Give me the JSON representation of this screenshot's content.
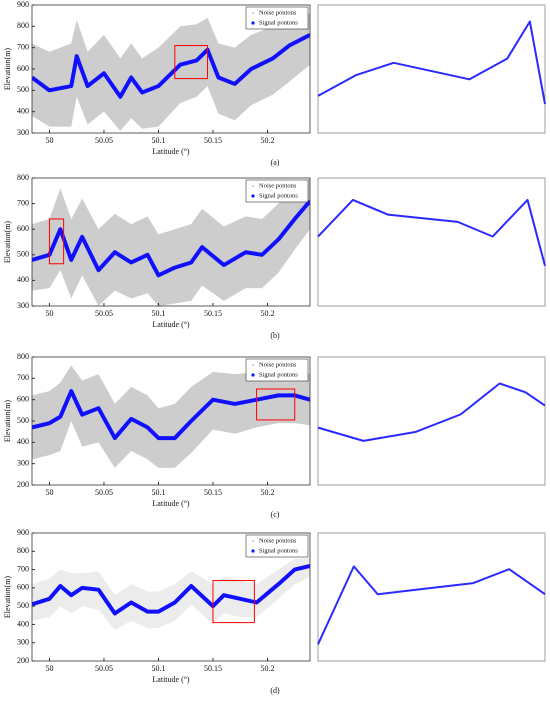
{
  "chart_data": [
    {
      "type": "line",
      "caption": "(a)",
      "xlabel": "Latitude (°)",
      "ylabel": "Elevation(m)",
      "legend": "upper right",
      "xlim": [
        49.984,
        50.239
      ],
      "ylim": [
        300,
        900
      ],
      "xticks": [
        50,
        50.05,
        50.1,
        50.15,
        50.2
      ],
      "yticks": [
        300,
        400,
        500,
        600,
        700,
        800,
        900
      ],
      "x": [
        49.984,
        50,
        50.02,
        50.025,
        50.035,
        50.05,
        50.065,
        50.075,
        50.085,
        50.1,
        50.12,
        50.135,
        50.145,
        50.155,
        50.17,
        50.185,
        50.205,
        50.22,
        50.239
      ],
      "series": [
        {
          "name": "Noise pontons",
          "color": "#c8c8c8",
          "upper": [
            720,
            680,
            720,
            830,
            680,
            760,
            650,
            720,
            650,
            700,
            800,
            810,
            840,
            720,
            700,
            760,
            800,
            850,
            860
          ],
          "lower": [
            380,
            330,
            330,
            470,
            340,
            400,
            310,
            370,
            320,
            330,
            440,
            470,
            520,
            390,
            360,
            430,
            480,
            540,
            620
          ]
        },
        {
          "name": "Signal pontons",
          "color": "#1010ff",
          "values": [
            560,
            500,
            520,
            660,
            520,
            580,
            470,
            560,
            490,
            520,
            620,
            640,
            690,
            560,
            530,
            600,
            650,
            710,
            760
          ]
        }
      ],
      "zoom": {
        "xlim": [
          50.115,
          50.145
        ],
        "ylim": [
          555,
          710
        ],
        "x": [
          50.115,
          50.12,
          50.125,
          50.13,
          50.135,
          50.14,
          50.143,
          50.145
        ],
        "values": [
          600,
          625,
          640,
          630,
          620,
          645,
          690,
          590
        ]
      }
    },
    {
      "type": "line",
      "caption": "(b)",
      "xlabel": "Latitude (°)",
      "ylabel": "Elevation(m)",
      "legend": "upper right",
      "xlim": [
        49.984,
        50.239
      ],
      "ylim": [
        300,
        800
      ],
      "xticks": [
        50,
        50.05,
        50.1,
        50.15,
        50.2
      ],
      "yticks": [
        300,
        400,
        500,
        600,
        700,
        800
      ],
      "x": [
        49.984,
        50,
        50.01,
        50.02,
        50.03,
        50.045,
        50.06,
        50.075,
        50.09,
        50.1,
        50.115,
        50.13,
        50.14,
        50.16,
        50.18,
        50.195,
        50.21,
        50.225,
        50.239
      ],
      "series": [
        {
          "name": "Noise pontons",
          "color": "#c8c8c8",
          "upper": [
            620,
            640,
            760,
            640,
            720,
            600,
            660,
            620,
            650,
            580,
            600,
            620,
            680,
            610,
            650,
            640,
            700,
            760,
            800
          ],
          "lower": [
            360,
            370,
            440,
            330,
            420,
            300,
            360,
            330,
            350,
            300,
            310,
            320,
            380,
            320,
            370,
            370,
            430,
            520,
            600
          ]
        },
        {
          "name": "Signal pontons",
          "color": "#1010ff",
          "values": [
            480,
            500,
            600,
            480,
            570,
            440,
            510,
            470,
            500,
            420,
            450,
            470,
            530,
            460,
            510,
            500,
            560,
            640,
            710
          ]
        }
      ],
      "zoom": {
        "xlim": [
          50,
          50.013
        ],
        "ylim": [
          465,
          640
        ],
        "x": [
          50,
          50.002,
          50.004,
          50.006,
          50.008,
          50.01,
          50.012,
          50.013
        ],
        "values": [
          560,
          610,
          590,
          585,
          580,
          560,
          610,
          520
        ]
      }
    },
    {
      "type": "line",
      "caption": "(c)",
      "xlabel": "Latitude (°)",
      "ylabel": "Elevation(m)",
      "legend": "upper right",
      "xlim": [
        49.984,
        50.239
      ],
      "ylim": [
        200,
        800
      ],
      "xticks": [
        50,
        50.05,
        50.1,
        50.15,
        50.2
      ],
      "yticks": [
        200,
        300,
        400,
        500,
        600,
        700,
        800
      ],
      "x": [
        49.984,
        50,
        50.01,
        50.02,
        50.03,
        50.045,
        50.06,
        50.075,
        50.09,
        50.1,
        50.115,
        50.13,
        50.15,
        50.17,
        50.19,
        50.21,
        50.225,
        50.239
      ],
      "series": [
        {
          "name": "Noise pontons",
          "color": "#c8c8c8",
          "upper": [
            620,
            640,
            680,
            760,
            690,
            720,
            580,
            660,
            620,
            560,
            580,
            660,
            730,
            720,
            730,
            760,
            750,
            720
          ],
          "lower": [
            320,
            340,
            360,
            500,
            380,
            400,
            280,
            360,
            320,
            280,
            280,
            350,
            460,
            440,
            470,
            490,
            490,
            480
          ]
        },
        {
          "name": "Signal pontons",
          "color": "#1010ff",
          "values": [
            470,
            490,
            520,
            640,
            530,
            560,
            420,
            510,
            470,
            420,
            420,
            500,
            600,
            580,
            600,
            620,
            620,
            600
          ]
        }
      ],
      "zoom": {
        "xlim": [
          50.19,
          50.225
        ],
        "ylim": [
          505,
          650
        ],
        "x": [
          50.19,
          50.197,
          50.205,
          50.212,
          50.218,
          50.222,
          50.225
        ],
        "values": [
          570,
          555,
          565,
          585,
          620,
          610,
          595
        ]
      }
    },
    {
      "type": "line",
      "caption": "(d)",
      "xlabel": "Latitude (°)",
      "ylabel": "Elevation(m)",
      "legend": "upper right",
      "xlim": [
        49.984,
        50.239
      ],
      "ylim": [
        200,
        900
      ],
      "xticks": [
        50,
        50.05,
        50.1,
        50.15,
        50.2
      ],
      "yticks": [
        200,
        300,
        400,
        500,
        600,
        700,
        800,
        900
      ],
      "x": [
        49.984,
        50,
        50.01,
        50.02,
        50.03,
        50.045,
        50.06,
        50.075,
        50.09,
        50.1,
        50.115,
        50.13,
        50.15,
        50.16,
        50.175,
        50.19,
        50.21,
        50.225,
        50.239
      ],
      "series": [
        {
          "name": "Noise pontons",
          "color": "#c8c8c8",
          "upper": [
            620,
            650,
            700,
            680,
            680,
            690,
            560,
            620,
            580,
            580,
            620,
            690,
            620,
            660,
            640,
            620,
            700,
            760,
            760
          ],
          "lower": [
            420,
            440,
            500,
            460,
            500,
            480,
            370,
            420,
            380,
            380,
            420,
            510,
            400,
            460,
            440,
            440,
            540,
            620,
            660
          ]
        },
        {
          "name": "Signal pontons",
          "color": "#1010ff",
          "values": [
            510,
            540,
            610,
            560,
            600,
            590,
            460,
            520,
            470,
            470,
            520,
            610,
            500,
            560,
            540,
            520,
            620,
            700,
            720
          ]
        }
      ],
      "zoom": {
        "xlim": [
          50.15,
          50.188
        ],
        "ylim": [
          410,
          640
        ],
        "x": [
          50.15,
          50.156,
          50.16,
          50.168,
          50.176,
          50.182,
          50.188
        ],
        "values": [
          440,
          580,
          530,
          540,
          550,
          575,
          530
        ]
      }
    }
  ]
}
